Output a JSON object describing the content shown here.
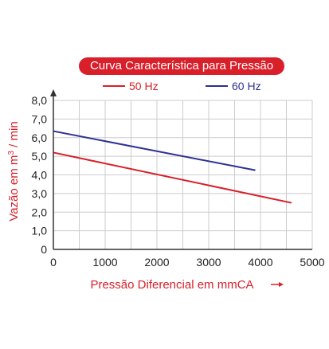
{
  "chart_data": {
    "type": "line",
    "title": "Curva Característica para Pressão",
    "xlabel": "Pressão Diferencial em mmCA",
    "ylabel": "Vazão em m",
    "ylabel_sup": "3",
    "ylabel_suffix": " / min",
    "xlim": [
      0,
      5000
    ],
    "ylim": [
      0,
      8.0
    ],
    "xticks": [
      0,
      1000,
      2000,
      3000,
      4000,
      5000
    ],
    "xtick_labels": [
      "0",
      "1000",
      "2000",
      "3000",
      "4000",
      "5000"
    ],
    "yticks": [
      0,
      1,
      2,
      3,
      4,
      5,
      6,
      7,
      8
    ],
    "ytick_labels": [
      "0",
      "1,0",
      "2,0",
      "3,0",
      "4,0",
      "5,0",
      "6,0",
      "7,0",
      "8,0"
    ],
    "grid": true,
    "legend_position": "top",
    "series": [
      {
        "name": "50 Hz",
        "color": "#d81f2a",
        "x": [
          0,
          4600
        ],
        "y": [
          5.2,
          2.5
        ]
      },
      {
        "name": "60 Hz",
        "color": "#2e3192",
        "x": [
          0,
          3900
        ],
        "y": [
          6.35,
          4.25
        ]
      }
    ]
  },
  "colors": {
    "accent": "#d81f2a",
    "grid": "#cccccc",
    "axis": "#333333"
  }
}
